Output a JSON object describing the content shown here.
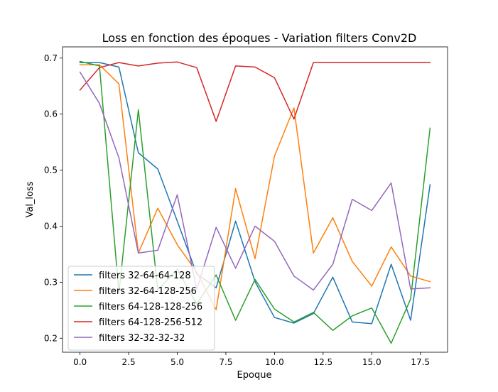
{
  "chart_data": {
    "type": "line",
    "title": "Loss en fonction des époques - Variation filters Conv2D",
    "xlabel": "Epoque",
    "ylabel": "Val_loss",
    "xlim": [
      -0.9,
      18.9
    ],
    "ylim": [
      0.175,
      0.72
    ],
    "xticks": [
      0.0,
      2.5,
      5.0,
      7.5,
      10.0,
      12.5,
      15.0,
      17.5
    ],
    "xtick_labels": [
      "0.0",
      "2.5",
      "5.0",
      "7.5",
      "10.0",
      "12.5",
      "15.0",
      "17.5"
    ],
    "yticks": [
      0.2,
      0.3,
      0.4,
      0.5,
      0.6,
      0.7
    ],
    "ytick_labels": [
      "0.2",
      "0.3",
      "0.4",
      "0.5",
      "0.6",
      "0.7"
    ],
    "grid": false,
    "legend_position": "lower-left",
    "x": [
      0,
      1,
      2,
      3,
      4,
      5,
      6,
      7,
      8,
      9,
      10,
      11,
      12,
      13,
      14,
      15,
      16,
      17,
      18
    ],
    "series": [
      {
        "name": "filters 32-64-64-128",
        "color": "#1f77b4",
        "values": [
          0.692,
          0.692,
          0.684,
          0.531,
          0.502,
          0.409,
          0.315,
          0.29,
          0.409,
          0.301,
          0.237,
          0.227,
          0.244,
          0.309,
          0.229,
          0.226,
          0.332,
          0.232,
          0.474
        ]
      },
      {
        "name": "filters 32-64-128-256",
        "color": "#ff7f0e",
        "values": [
          0.688,
          0.688,
          0.654,
          0.352,
          0.432,
          0.367,
          0.318,
          0.251,
          0.467,
          0.342,
          0.525,
          0.611,
          0.352,
          0.415,
          0.337,
          0.293,
          0.363,
          0.311,
          0.301
        ]
      },
      {
        "name": "filters 64-128-128-256",
        "color": "#2ca02c",
        "values": [
          0.694,
          0.686,
          0.281,
          0.608,
          0.286,
          0.323,
          0.261,
          0.313,
          0.232,
          0.305,
          0.252,
          0.229,
          0.246,
          0.214,
          0.24,
          0.254,
          0.191,
          0.27,
          0.575
        ]
      },
      {
        "name": "filters 64-128-256-512",
        "color": "#d62728",
        "values": [
          0.643,
          0.683,
          0.692,
          0.686,
          0.691,
          0.693,
          0.683,
          0.587,
          0.686,
          0.684,
          0.665,
          0.591,
          0.692,
          0.692,
          0.692,
          0.692,
          0.692,
          0.692,
          0.692
        ]
      },
      {
        "name": "filters 32-32-32-32",
        "color": "#9467bd",
        "values": [
          0.675,
          0.619,
          0.522,
          0.352,
          0.357,
          0.456,
          0.287,
          0.398,
          0.325,
          0.4,
          0.373,
          0.311,
          0.286,
          0.332,
          0.448,
          0.428,
          0.477,
          0.288,
          0.29
        ]
      }
    ]
  }
}
